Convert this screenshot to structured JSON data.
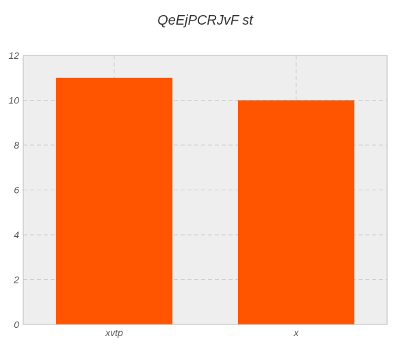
{
  "chart_data": {
    "type": "bar",
    "title": "QeEjPCRJvF st",
    "xlabel": "",
    "ylabel": "",
    "categories": [
      "xvtp",
      "x"
    ],
    "values": [
      11,
      10
    ],
    "ylim": [
      0,
      12
    ],
    "yticks": [
      0,
      2,
      4,
      6,
      8,
      10,
      12
    ],
    "grid": true,
    "colors": {
      "bar": "#ff5500",
      "plot_background": "#eeeeee",
      "grid": "#cccccc",
      "frame": "#bbbbbb"
    }
  }
}
